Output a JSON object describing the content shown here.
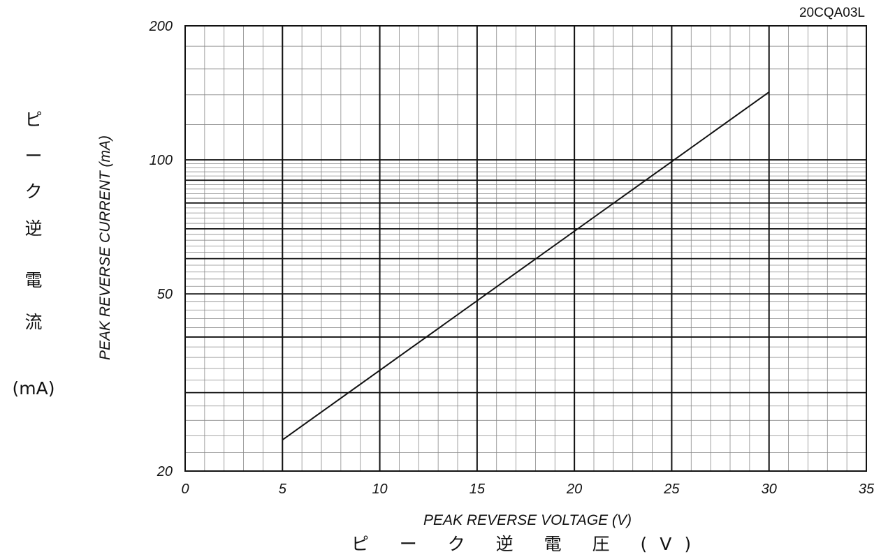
{
  "chart_data": {
    "type": "line",
    "model_label": "20CQA03L",
    "xlabel": "PEAK REVERSE VOLTAGE (V)",
    "xlabel_jp": "ピ ー ク 逆 電 圧 (V)",
    "ylabel": "PEAK REVERSE CURRENT (mA)",
    "ylabel_jp": [
      "ピ",
      "ー",
      "ク",
      "逆",
      "電",
      "流",
      "(mA)"
    ],
    "xlim": [
      0,
      35
    ],
    "ylim": [
      20,
      200
    ],
    "yscale": "log",
    "grid": true,
    "x_ticks": [
      "0",
      "5",
      "10",
      "15",
      "20",
      "25",
      "30",
      "35"
    ],
    "y_ticks": [
      "20",
      "50",
      "100",
      "200"
    ],
    "series": [
      {
        "x": [
          5,
          30
        ],
        "y": [
          23.5,
          142
        ]
      }
    ]
  }
}
